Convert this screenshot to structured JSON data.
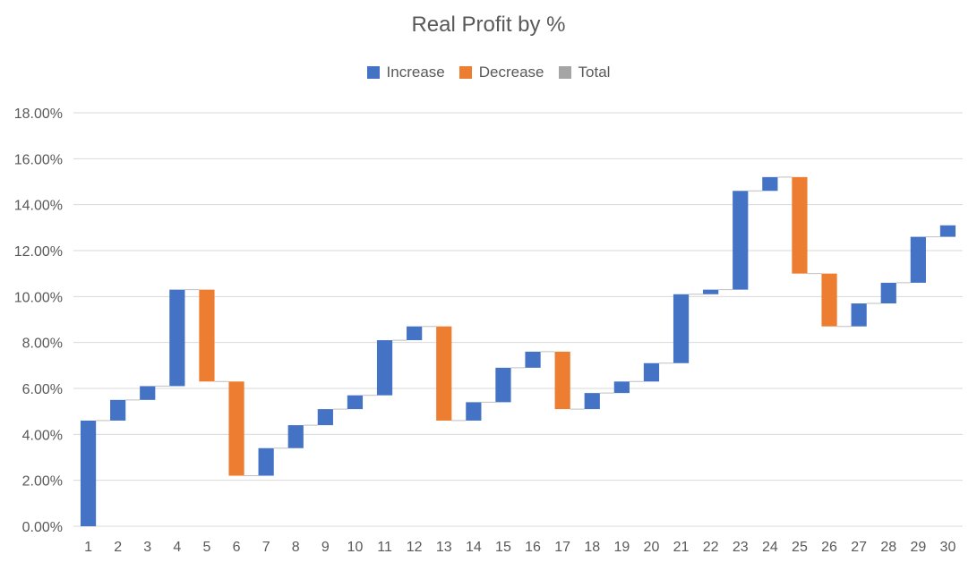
{
  "chart_data": {
    "type": "bar",
    "subtype": "waterfall",
    "title": "Real Profit by %",
    "legend": {
      "position": "top",
      "items": [
        {
          "name": "Increase",
          "color": "#4472C4"
        },
        {
          "name": "Decrease",
          "color": "#ED7D31"
        },
        {
          "name": "Total",
          "color": "#A5A5A5"
        }
      ]
    },
    "categories": [
      "1",
      "2",
      "3",
      "4",
      "5",
      "6",
      "7",
      "8",
      "9",
      "10",
      "11",
      "12",
      "13",
      "14",
      "15",
      "16",
      "17",
      "18",
      "19",
      "20",
      "21",
      "22",
      "23",
      "24",
      "25",
      "26",
      "27",
      "28",
      "29",
      "30"
    ],
    "steps": [
      4.6,
      0.9,
      0.6,
      4.2,
      -4.0,
      -4.1,
      1.2,
      1.0,
      0.7,
      0.6,
      2.4,
      0.6,
      -4.1,
      0.8,
      1.5,
      0.7,
      -2.5,
      0.7,
      0.5,
      0.8,
      3.0,
      0.2,
      4.3,
      0.6,
      -4.2,
      -2.3,
      1.0,
      0.9,
      2.0,
      0.5
    ],
    "running_totals": [
      4.6,
      5.5,
      6.1,
      10.3,
      6.3,
      2.2,
      3.4,
      4.4,
      5.1,
      5.7,
      8.1,
      8.7,
      4.6,
      5.4,
      6.9,
      7.6,
      5.1,
      5.8,
      6.3,
      7.1,
      10.1,
      10.3,
      14.6,
      15.2,
      11.0,
      8.7,
      9.7,
      10.6,
      12.6,
      13.1
    ],
    "ylim": [
      0,
      18
    ],
    "yticks": [
      "0.00%",
      "2.00%",
      "4.00%",
      "6.00%",
      "8.00%",
      "10.00%",
      "12.00%",
      "14.00%",
      "16.00%",
      "18.00%"
    ],
    "ytick_values": [
      0,
      2,
      4,
      6,
      8,
      10,
      12,
      14,
      16,
      18
    ],
    "grid": true,
    "connector_lines": true
  }
}
